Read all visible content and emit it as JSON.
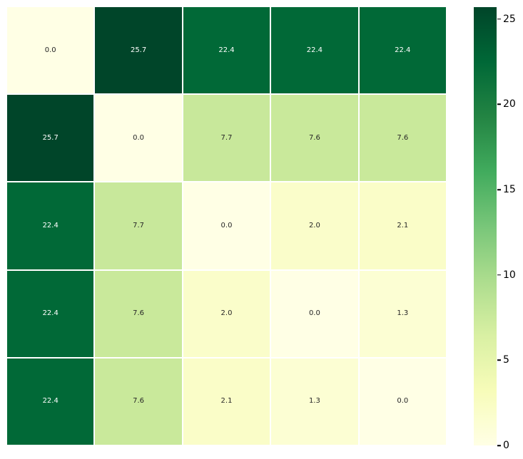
{
  "chart_data": {
    "type": "heatmap",
    "title": "",
    "xlabel": "",
    "ylabel": "",
    "x_tick_labels": [],
    "y_tick_labels": [],
    "rows": 5,
    "cols": 5,
    "matrix": [
      [
        0.0,
        25.7,
        22.4,
        22.4,
        22.4
      ],
      [
        25.7,
        0.0,
        7.7,
        7.6,
        7.6
      ],
      [
        22.4,
        7.7,
        0.0,
        2.0,
        2.1
      ],
      [
        22.4,
        7.6,
        2.0,
        0.0,
        1.3
      ],
      [
        22.4,
        7.6,
        2.1,
        1.3,
        0.0
      ]
    ],
    "cell_labels": [
      [
        "0.0",
        "25.7",
        "22.4",
        "22.4",
        "22.4"
      ],
      [
        "25.7",
        "0.0",
        "7.7",
        "7.6",
        "7.6"
      ],
      [
        "22.4",
        "7.7",
        "0.0",
        "2.0",
        "2.1"
      ],
      [
        "22.4",
        "7.6",
        "2.0",
        "0.0",
        "1.3"
      ],
      [
        "22.4",
        "7.6",
        "2.1",
        "1.3",
        "0.0"
      ]
    ],
    "annot_format": ".1f",
    "vmin": 0,
    "vmax": 25.7,
    "colormap": "YlGn",
    "colormap_stops": [
      "#ffffe5",
      "#f7fcb9",
      "#d9f0a3",
      "#addd8e",
      "#78c679",
      "#41ab5d",
      "#238443",
      "#006837",
      "#004529"
    ],
    "annotation_text_colors": {
      "light": "#ffffff",
      "dark": "#262626"
    },
    "cell_gap_color": "#ffffff",
    "legend_position": "none",
    "grid": "off",
    "colorbar": {
      "position": "right",
      "ticks": [
        0,
        5,
        10,
        15,
        20,
        25
      ],
      "tick_labels": [
        "0",
        "5",
        "10",
        "15",
        "20",
        "25"
      ],
      "tick_color": "#000000"
    }
  }
}
